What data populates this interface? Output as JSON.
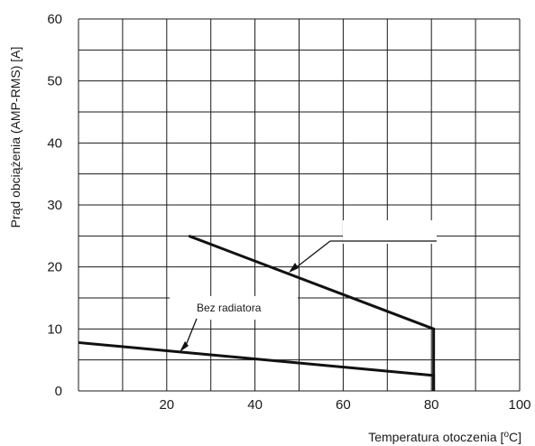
{
  "chart_data": {
    "type": "line",
    "xlabel": "Temperatura otoczenia [",
    "xlabel_sup": "o",
    "xlabel_tail": "C]",
    "ylabel": "Prąd obciążenia (AMP-RMS) [A]",
    "xlim": [
      0,
      100
    ],
    "ylim": [
      0,
      60
    ],
    "x_ticks": [
      "20",
      "40",
      "60",
      "80",
      "100"
    ],
    "y_ticks": [
      "0",
      "10",
      "20",
      "30",
      "40",
      "50",
      "60"
    ],
    "x_grid_step": 10,
    "y_grid_step": 5,
    "grid": true,
    "series": [
      {
        "label_key": "with_radiator",
        "x": [
          25,
          80.5,
          80.5
        ],
        "y": [
          25,
          10,
          0
        ]
      },
      {
        "label_key": "without_radiator",
        "x": [
          0,
          80.5,
          80.5
        ],
        "y": [
          7.8,
          2.5,
          0
        ]
      }
    ],
    "annotations": {
      "without_radiator": "Bez radiatora",
      "with_radiator": ""
    },
    "colors": {
      "line": "#111111",
      "grid": "#1a1a1a",
      "background": "#ffffff"
    }
  }
}
